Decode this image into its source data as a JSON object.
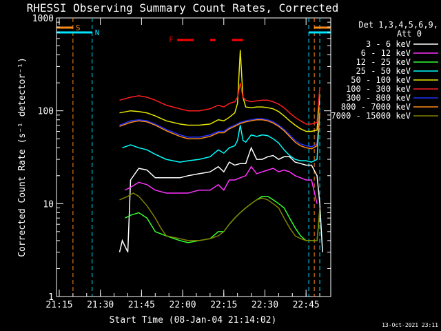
{
  "chart_data": {
    "type": "line",
    "title": "RHESSI Observing Summary Count Rates, Corrected",
    "xlabel": "Start Time (08-Jan-04 21:14:02)",
    "ylabel": "Corrected Count Rate (s⁻¹ detector⁻¹)",
    "yscale": "log",
    "ylim": [
      1,
      1000
    ],
    "xlim_minutes": [
      0,
      100
    ],
    "x_tick_labels": [
      "21:15",
      "21:30",
      "21:45",
      "22:00",
      "22:15",
      "22:30",
      "22:45"
    ],
    "y_tick_labels": [
      "1",
      "10",
      "100",
      "1000"
    ],
    "legend_title": "Det 1,3,4,5,6,9,",
    "legend_subtitle": "Att 0",
    "legend_position": "right",
    "footer": "13-Oct-2021 23:11",
    "markers": {
      "saa_label": "S",
      "night_label": "N",
      "flare_label": "F",
      "saa_color": "#ff8c1a",
      "night_color": "#00e5ff",
      "flare_color": "#ff0000"
    },
    "series": [
      {
        "name": "3 - 6 keV",
        "color": "#ffffff",
        "points": [
          [
            23,
            3
          ],
          [
            24,
            4
          ],
          [
            26,
            3
          ],
          [
            27,
            18
          ],
          [
            30,
            24
          ],
          [
            33,
            23
          ],
          [
            36,
            19
          ],
          [
            40,
            19
          ],
          [
            45,
            19
          ],
          [
            48,
            20
          ],
          [
            52,
            21
          ],
          [
            56,
            22
          ],
          [
            59,
            25
          ],
          [
            61,
            22
          ],
          [
            63,
            28
          ],
          [
            65,
            26
          ],
          [
            67,
            27
          ],
          [
            69,
            27
          ],
          [
            71,
            40
          ],
          [
            73,
            30
          ],
          [
            75,
            30
          ],
          [
            77,
            32
          ],
          [
            79,
            33
          ],
          [
            81,
            30
          ],
          [
            83,
            32
          ],
          [
            85,
            32
          ],
          [
            87,
            28
          ],
          [
            89,
            27
          ],
          [
            91,
            26
          ],
          [
            93,
            26
          ],
          [
            95,
            20
          ],
          [
            96,
            10
          ],
          [
            97,
            3
          ]
        ]
      },
      {
        "name": "6 - 12 keV",
        "color": "#ff33ff",
        "points": [
          [
            25,
            14
          ],
          [
            27,
            15
          ],
          [
            30,
            17
          ],
          [
            33,
            16
          ],
          [
            36,
            14
          ],
          [
            40,
            13
          ],
          [
            45,
            13
          ],
          [
            48,
            13
          ],
          [
            52,
            14
          ],
          [
            56,
            14
          ],
          [
            59,
            16
          ],
          [
            61,
            14
          ],
          [
            63,
            18
          ],
          [
            65,
            18
          ],
          [
            67,
            19
          ],
          [
            69,
            20
          ],
          [
            71,
            25
          ],
          [
            73,
            21
          ],
          [
            75,
            22
          ],
          [
            77,
            23
          ],
          [
            79,
            24
          ],
          [
            81,
            22
          ],
          [
            83,
            23
          ],
          [
            85,
            22
          ],
          [
            87,
            20
          ],
          [
            89,
            19
          ],
          [
            91,
            18
          ],
          [
            93,
            18
          ],
          [
            95,
            10
          ]
        ]
      },
      {
        "name": "12 - 25 keV",
        "color": "#33ff33",
        "points": [
          [
            25,
            7
          ],
          [
            27,
            7.5
          ],
          [
            30,
            8
          ],
          [
            33,
            7
          ],
          [
            36,
            5
          ],
          [
            40,
            4.5
          ],
          [
            45,
            4
          ],
          [
            48,
            3.8
          ],
          [
            52,
            4
          ],
          [
            56,
            4.2
          ],
          [
            59,
            5
          ],
          [
            61,
            5
          ],
          [
            63,
            6
          ],
          [
            65,
            7
          ],
          [
            67,
            8
          ],
          [
            69,
            9
          ],
          [
            71,
            10
          ],
          [
            73,
            11
          ],
          [
            75,
            12
          ],
          [
            77,
            12
          ],
          [
            79,
            11
          ],
          [
            81,
            10
          ],
          [
            83,
            9
          ],
          [
            85,
            7
          ],
          [
            87,
            5.5
          ],
          [
            89,
            4.5
          ],
          [
            91,
            4
          ],
          [
            93,
            4
          ],
          [
            95,
            4
          ],
          [
            96,
            8
          ]
        ]
      },
      {
        "name": "25 - 50 keV",
        "color": "#00ffff",
        "points": [
          [
            24,
            40
          ],
          [
            27,
            43
          ],
          [
            30,
            40
          ],
          [
            33,
            38
          ],
          [
            36,
            34
          ],
          [
            40,
            30
          ],
          [
            45,
            28
          ],
          [
            48,
            29
          ],
          [
            52,
            30
          ],
          [
            56,
            32
          ],
          [
            59,
            38
          ],
          [
            61,
            35
          ],
          [
            63,
            40
          ],
          [
            65,
            42
          ],
          [
            66,
            48
          ],
          [
            67,
            70
          ],
          [
            68,
            48
          ],
          [
            69,
            46
          ],
          [
            71,
            55
          ],
          [
            73,
            53
          ],
          [
            75,
            55
          ],
          [
            77,
            54
          ],
          [
            79,
            50
          ],
          [
            81,
            45
          ],
          [
            83,
            38
          ],
          [
            85,
            33
          ],
          [
            87,
            30
          ],
          [
            89,
            29
          ],
          [
            91,
            29
          ],
          [
            93,
            28
          ],
          [
            95,
            30
          ],
          [
            96,
            100
          ]
        ]
      },
      {
        "name": "50 - 100 keV",
        "color": "#e8e800",
        "points": [
          [
            23,
            95
          ],
          [
            27,
            100
          ],
          [
            30,
            98
          ],
          [
            33,
            95
          ],
          [
            36,
            88
          ],
          [
            40,
            78
          ],
          [
            45,
            72
          ],
          [
            48,
            70
          ],
          [
            52,
            70
          ],
          [
            56,
            72
          ],
          [
            59,
            80
          ],
          [
            61,
            78
          ],
          [
            63,
            85
          ],
          [
            65,
            95
          ],
          [
            66,
            120
          ],
          [
            67,
            450
          ],
          [
            68,
            140
          ],
          [
            69,
            110
          ],
          [
            71,
            108
          ],
          [
            73,
            110
          ],
          [
            75,
            110
          ],
          [
            77,
            108
          ],
          [
            79,
            105
          ],
          [
            81,
            98
          ],
          [
            83,
            88
          ],
          [
            85,
            78
          ],
          [
            87,
            70
          ],
          [
            89,
            64
          ],
          [
            91,
            60
          ],
          [
            93,
            60
          ],
          [
            95,
            62
          ],
          [
            96,
            150
          ]
        ]
      },
      {
        "name": "100 - 300 keV",
        "color": "#ff2020",
        "points": [
          [
            23,
            130
          ],
          [
            27,
            140
          ],
          [
            30,
            145
          ],
          [
            33,
            140
          ],
          [
            36,
            130
          ],
          [
            40,
            115
          ],
          [
            45,
            105
          ],
          [
            48,
            100
          ],
          [
            52,
            100
          ],
          [
            56,
            105
          ],
          [
            59,
            115
          ],
          [
            61,
            110
          ],
          [
            63,
            120
          ],
          [
            65,
            125
          ],
          [
            66,
            140
          ],
          [
            67,
            200
          ],
          [
            68,
            140
          ],
          [
            69,
            130
          ],
          [
            71,
            125
          ],
          [
            73,
            128
          ],
          [
            75,
            130
          ],
          [
            77,
            130
          ],
          [
            79,
            125
          ],
          [
            81,
            118
          ],
          [
            83,
            108
          ],
          [
            85,
            95
          ],
          [
            87,
            85
          ],
          [
            89,
            78
          ],
          [
            91,
            72
          ],
          [
            93,
            72
          ],
          [
            95,
            75
          ],
          [
            96,
            180
          ]
        ]
      },
      {
        "name": "300 - 800 keV",
        "color": "#2233ff",
        "points": [
          [
            23,
            70
          ],
          [
            27,
            78
          ],
          [
            30,
            80
          ],
          [
            33,
            78
          ],
          [
            36,
            72
          ],
          [
            40,
            63
          ],
          [
            45,
            55
          ],
          [
            48,
            52
          ],
          [
            52,
            52
          ],
          [
            56,
            55
          ],
          [
            59,
            60
          ],
          [
            61,
            60
          ],
          [
            63,
            66
          ],
          [
            65,
            70
          ],
          [
            67,
            75
          ],
          [
            69,
            78
          ],
          [
            71,
            80
          ],
          [
            73,
            82
          ],
          [
            75,
            82
          ],
          [
            77,
            80
          ],
          [
            79,
            76
          ],
          [
            81,
            70
          ],
          [
            83,
            63
          ],
          [
            85,
            55
          ],
          [
            87,
            48
          ],
          [
            89,
            44
          ],
          [
            91,
            42
          ],
          [
            93,
            41
          ],
          [
            95,
            44
          ],
          [
            96,
            100
          ]
        ]
      },
      {
        "name": "800 - 7000 keV",
        "color": "#ff8c1a",
        "points": [
          [
            23,
            68
          ],
          [
            27,
            75
          ],
          [
            30,
            78
          ],
          [
            33,
            76
          ],
          [
            36,
            70
          ],
          [
            40,
            61
          ],
          [
            45,
            53
          ],
          [
            48,
            50
          ],
          [
            52,
            50
          ],
          [
            56,
            53
          ],
          [
            59,
            58
          ],
          [
            61,
            58
          ],
          [
            63,
            64
          ],
          [
            65,
            68
          ],
          [
            67,
            73
          ],
          [
            69,
            76
          ],
          [
            71,
            78
          ],
          [
            73,
            80
          ],
          [
            75,
            80
          ],
          [
            77,
            78
          ],
          [
            79,
            74
          ],
          [
            81,
            68
          ],
          [
            83,
            61
          ],
          [
            85,
            53
          ],
          [
            87,
            46
          ],
          [
            89,
            42
          ],
          [
            91,
            40
          ],
          [
            93,
            39
          ],
          [
            95,
            42
          ],
          [
            96,
            95
          ]
        ]
      },
      {
        "name": "7000 - 15000 keV",
        "color": "#808000",
        "points": [
          [
            23,
            11
          ],
          [
            26,
            12
          ],
          [
            28,
            13
          ],
          [
            30,
            12
          ],
          [
            33,
            9.5
          ],
          [
            36,
            7
          ],
          [
            38,
            5.5
          ],
          [
            40,
            4.5
          ],
          [
            45,
            4.2
          ],
          [
            48,
            4
          ],
          [
            52,
            4
          ],
          [
            56,
            4.2
          ],
          [
            59,
            4.5
          ],
          [
            61,
            5
          ],
          [
            63,
            6
          ],
          [
            65,
            7
          ],
          [
            67,
            8
          ],
          [
            69,
            9
          ],
          [
            71,
            10
          ],
          [
            73,
            11
          ],
          [
            75,
            11.5
          ],
          [
            77,
            11
          ],
          [
            79,
            10
          ],
          [
            81,
            9
          ],
          [
            83,
            7
          ],
          [
            85,
            5.5
          ],
          [
            87,
            4.5
          ],
          [
            89,
            4.2
          ],
          [
            91,
            4
          ],
          [
            93,
            4
          ],
          [
            95,
            4
          ],
          [
            96,
            9
          ]
        ]
      }
    ]
  }
}
